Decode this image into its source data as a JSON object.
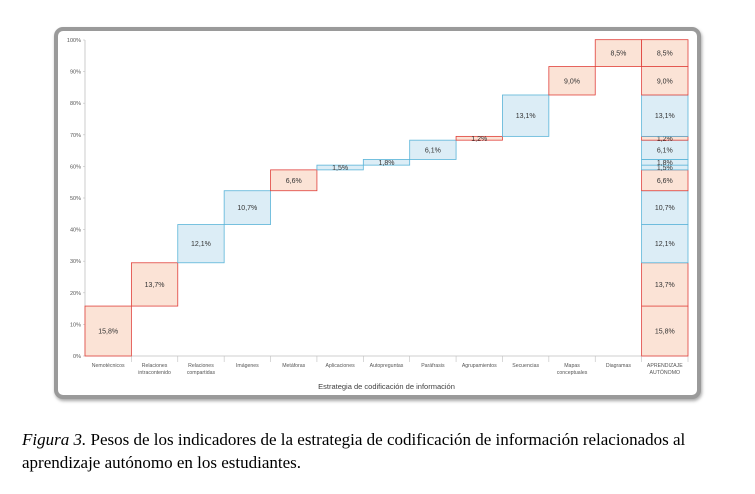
{
  "chart_data": {
    "type": "bar",
    "subtype": "waterfall",
    "xlabel": "Estrategia de codificación de información",
    "ylabel": "",
    "ylim": [
      0,
      100
    ],
    "y_ticks": [
      "0%",
      "10%",
      "20%",
      "30%",
      "40%",
      "50%",
      "60%",
      "70%",
      "80%",
      "90%",
      "100%"
    ],
    "grid": false,
    "legend": "none",
    "colors": {
      "red_fill": "#fbe3d6",
      "red_stroke": "#e0403a",
      "blue_fill": "#dcedf6",
      "blue_stroke": "#5ab4d8"
    },
    "categories": [
      {
        "label": [
          "Nemotécnicos"
        ],
        "value": 15.8,
        "value_label": "15,8%",
        "color": "red"
      },
      {
        "label": [
          "Relaciones",
          "intracontenido"
        ],
        "value": 13.7,
        "value_label": "13,7%",
        "color": "red"
      },
      {
        "label": [
          "Relaciones",
          "compartidas"
        ],
        "value": 12.1,
        "value_label": "12,1%",
        "color": "blue"
      },
      {
        "label": [
          "Imágenes"
        ],
        "value": 10.7,
        "value_label": "10,7%",
        "color": "blue"
      },
      {
        "label": [
          "Metáforas"
        ],
        "value": 6.6,
        "value_label": "6,6%",
        "color": "red"
      },
      {
        "label": [
          "Aplicaciones"
        ],
        "value": 1.5,
        "value_label": "1,5%",
        "color": "blue"
      },
      {
        "label": [
          "Autopreguntas"
        ],
        "value": 1.8,
        "value_label": "1,8%",
        "color": "blue"
      },
      {
        "label": [
          "Paráfrasis"
        ],
        "value": 6.1,
        "value_label": "6,1%",
        "color": "blue"
      },
      {
        "label": [
          "Agrupamientos"
        ],
        "value": 1.2,
        "value_label": "1,2%",
        "color": "red"
      },
      {
        "label": [
          "Secuencias"
        ],
        "value": 13.1,
        "value_label": "13,1%",
        "color": "blue"
      },
      {
        "label": [
          "Mapas",
          "conceptuales"
        ],
        "value": 9.0,
        "value_label": "9,0%",
        "color": "red"
      },
      {
        "label": [
          "Diagramas"
        ],
        "value": 8.5,
        "value_label": "8,5%",
        "color": "red"
      }
    ],
    "total": {
      "label": [
        "APRENDIZAJE",
        "AUTÓNOMO"
      ]
    }
  },
  "caption": {
    "label": "Figura 3.",
    "text": " Pesos de los indicadores de la estrategia de codificación de información relacionados al aprendizaje autónomo en los estudiantes."
  }
}
